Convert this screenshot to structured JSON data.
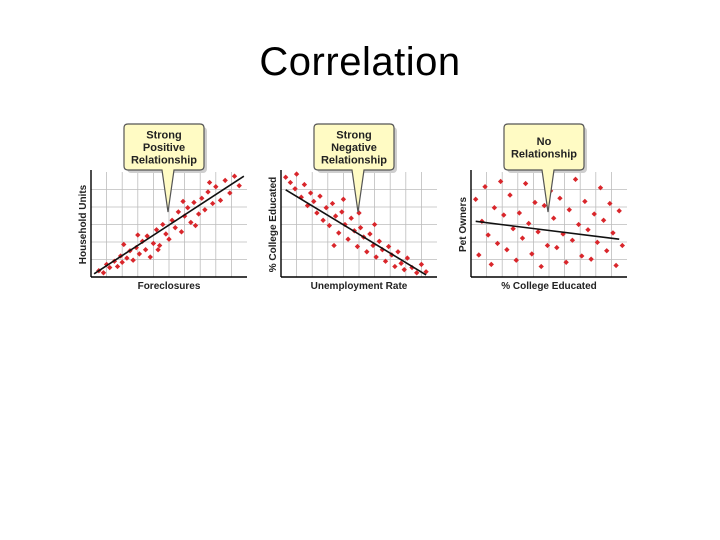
{
  "slide": {
    "title": "Correlation"
  },
  "colors": {
    "point": "#d9262b",
    "line": "#111111",
    "grid": "#bcbcbc",
    "callout_fill": "#fffbc4",
    "callout_border": "#555555"
  },
  "chart_data": [
    {
      "type": "scatter",
      "callout": [
        "Strong",
        "Positive",
        "Relationship"
      ],
      "xlabel": "Foreclosures",
      "ylabel": "Household Units",
      "xlim": [
        0,
        10
      ],
      "ylim": [
        0,
        10
      ],
      "grid": true,
      "trend": [
        [
          0.2,
          0.3
        ],
        [
          9.8,
          9.6
        ]
      ],
      "points": [
        [
          0.5,
          0.6
        ],
        [
          0.8,
          0.4
        ],
        [
          1.0,
          1.2
        ],
        [
          1.2,
          0.9
        ],
        [
          1.5,
          1.5
        ],
        [
          1.7,
          1.0
        ],
        [
          1.9,
          2.0
        ],
        [
          2.0,
          1.4
        ],
        [
          2.3,
          1.8
        ],
        [
          2.5,
          2.5
        ],
        [
          2.7,
          1.6
        ],
        [
          2.9,
          2.8
        ],
        [
          3.1,
          2.2
        ],
        [
          3.3,
          3.4
        ],
        [
          3.5,
          2.6
        ],
        [
          3.6,
          3.9
        ],
        [
          3.8,
          1.9
        ],
        [
          4.0,
          3.2
        ],
        [
          4.2,
          4.5
        ],
        [
          4.4,
          3.0
        ],
        [
          4.6,
          5.0
        ],
        [
          4.8,
          4.1
        ],
        [
          5.0,
          3.6
        ],
        [
          5.2,
          5.4
        ],
        [
          5.4,
          4.7
        ],
        [
          5.6,
          6.2
        ],
        [
          5.8,
          4.3
        ],
        [
          6.0,
          5.8
        ],
        [
          6.2,
          6.6
        ],
        [
          6.4,
          5.2
        ],
        [
          6.6,
          7.1
        ],
        [
          6.9,
          6.0
        ],
        [
          7.1,
          7.5
        ],
        [
          7.3,
          6.4
        ],
        [
          7.5,
          8.1
        ],
        [
          7.8,
          7.0
        ],
        [
          8.0,
          8.6
        ],
        [
          8.3,
          7.3
        ],
        [
          8.6,
          9.2
        ],
        [
          8.9,
          8.0
        ],
        [
          9.2,
          9.6
        ],
        [
          9.5,
          8.7
        ],
        [
          2.1,
          3.1
        ],
        [
          3.0,
          4.0
        ],
        [
          4.3,
          2.6
        ],
        [
          5.9,
          7.2
        ],
        [
          6.7,
          4.9
        ],
        [
          7.6,
          9.0
        ]
      ]
    },
    {
      "type": "scatter",
      "callout": [
        "Strong",
        "Negative",
        "Relationship"
      ],
      "xlabel": "Unemployment Rate",
      "ylabel": "% College Educated",
      "xlim": [
        0,
        10
      ],
      "ylim": [
        0,
        10
      ],
      "grid": true,
      "trend": [
        [
          0.3,
          8.3
        ],
        [
          9.3,
          0.2
        ]
      ],
      "points": [
        [
          0.3,
          9.5
        ],
        [
          0.6,
          9.0
        ],
        [
          0.9,
          8.4
        ],
        [
          1.0,
          9.8
        ],
        [
          1.3,
          7.6
        ],
        [
          1.5,
          8.8
        ],
        [
          1.7,
          6.8
        ],
        [
          1.9,
          8.0
        ],
        [
          2.1,
          7.2
        ],
        [
          2.3,
          6.1
        ],
        [
          2.5,
          7.7
        ],
        [
          2.7,
          5.4
        ],
        [
          2.9,
          6.6
        ],
        [
          3.1,
          4.9
        ],
        [
          3.3,
          7.0
        ],
        [
          3.5,
          5.8
        ],
        [
          3.7,
          4.2
        ],
        [
          3.9,
          6.2
        ],
        [
          4.1,
          5.0
        ],
        [
          4.3,
          3.6
        ],
        [
          4.5,
          5.6
        ],
        [
          4.7,
          4.4
        ],
        [
          4.9,
          2.9
        ],
        [
          5.1,
          4.7
        ],
        [
          5.3,
          3.8
        ],
        [
          5.5,
          2.4
        ],
        [
          5.7,
          4.1
        ],
        [
          5.9,
          3.0
        ],
        [
          6.1,
          1.9
        ],
        [
          6.3,
          3.4
        ],
        [
          6.5,
          2.6
        ],
        [
          6.7,
          1.5
        ],
        [
          6.9,
          2.9
        ],
        [
          7.1,
          2.1
        ],
        [
          7.3,
          1.0
        ],
        [
          7.5,
          2.4
        ],
        [
          7.7,
          1.3
        ],
        [
          7.9,
          0.7
        ],
        [
          8.1,
          1.8
        ],
        [
          8.4,
          0.9
        ],
        [
          8.7,
          0.4
        ],
        [
          9.0,
          1.2
        ],
        [
          9.3,
          0.5
        ],
        [
          4.0,
          7.4
        ],
        [
          5.0,
          6.1
        ],
        [
          6.0,
          5.0
        ],
        [
          3.4,
          3.0
        ]
      ]
    },
    {
      "type": "scatter",
      "callout": [
        "No",
        "Relationship"
      ],
      "xlabel": "% College Educated",
      "ylabel": "Pet Owners",
      "xlim": [
        0,
        10
      ],
      "ylim": [
        0,
        10
      ],
      "grid": true,
      "trend": [
        [
          0.3,
          5.3
        ],
        [
          9.5,
          3.6
        ]
      ],
      "points": [
        [
          0.3,
          7.4
        ],
        [
          0.5,
          2.1
        ],
        [
          0.7,
          5.3
        ],
        [
          0.9,
          8.6
        ],
        [
          1.1,
          4.0
        ],
        [
          1.3,
          1.2
        ],
        [
          1.5,
          6.6
        ],
        [
          1.7,
          3.2
        ],
        [
          1.9,
          9.1
        ],
        [
          2.1,
          5.9
        ],
        [
          2.3,
          2.6
        ],
        [
          2.5,
          7.8
        ],
        [
          2.7,
          4.6
        ],
        [
          2.9,
          1.6
        ],
        [
          3.1,
          6.1
        ],
        [
          3.3,
          3.7
        ],
        [
          3.5,
          8.9
        ],
        [
          3.7,
          5.1
        ],
        [
          3.9,
          2.2
        ],
        [
          4.1,
          7.1
        ],
        [
          4.3,
          4.3
        ],
        [
          4.5,
          1.0
        ],
        [
          4.7,
          6.8
        ],
        [
          4.9,
          3.0
        ],
        [
          5.1,
          8.2
        ],
        [
          5.3,
          5.6
        ],
        [
          5.5,
          2.8
        ],
        [
          5.7,
          7.5
        ],
        [
          5.9,
          4.1
        ],
        [
          6.1,
          1.4
        ],
        [
          6.3,
          6.4
        ],
        [
          6.5,
          3.5
        ],
        [
          6.7,
          9.3
        ],
        [
          6.9,
          5.0
        ],
        [
          7.1,
          2.0
        ],
        [
          7.3,
          7.2
        ],
        [
          7.5,
          4.5
        ],
        [
          7.7,
          1.7
        ],
        [
          7.9,
          6.0
        ],
        [
          8.1,
          3.3
        ],
        [
          8.3,
          8.5
        ],
        [
          8.5,
          5.4
        ],
        [
          8.7,
          2.5
        ],
        [
          8.9,
          7.0
        ],
        [
          9.1,
          4.2
        ],
        [
          9.3,
          1.1
        ],
        [
          9.5,
          6.3
        ],
        [
          9.7,
          3.0
        ]
      ]
    }
  ]
}
